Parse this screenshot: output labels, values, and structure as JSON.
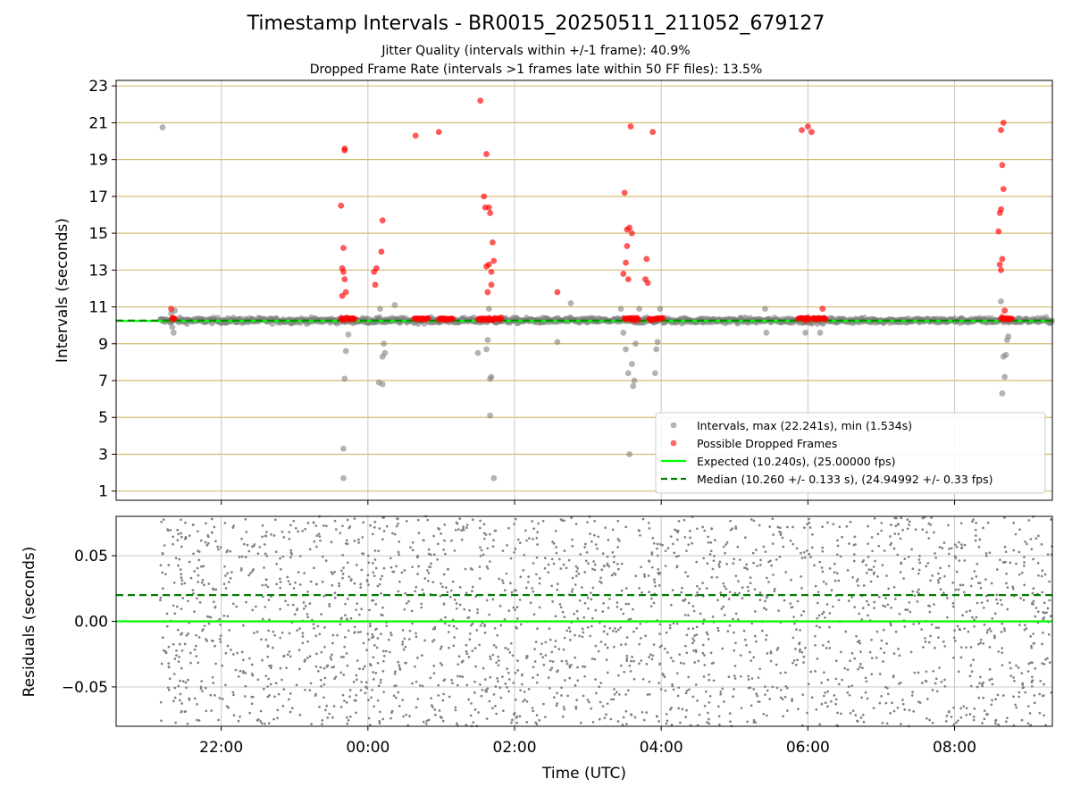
{
  "title": "Timestamp Intervals - BR0015_20250511_211052_679127",
  "subtitle_1": "Jitter Quality (intervals within +/-1 frame): 40.9%",
  "subtitle_2": "Dropped Frame Rate (intervals >1 frames late within 50 FF files): 13.5%",
  "chart_data": [
    {
      "type": "scatter",
      "panel": "intervals",
      "ylabel": "Intervals (seconds)",
      "xlabel": "",
      "ylim": [
        0.5,
        23.3
      ],
      "yticks": [
        1,
        3,
        5,
        7,
        9,
        11,
        13,
        15,
        17,
        19,
        21,
        23
      ],
      "grid": true,
      "legend_position": "lower right",
      "legend": [
        {
          "label": "Intervals, max (22.241s), min (1.534s)",
          "color": "#808080",
          "marker": "circle"
        },
        {
          "label": "Possible Dropped Frames",
          "color": "#ff0000",
          "marker": "circle"
        },
        {
          "label": "Expected (10.240s), (25.00000 fps)",
          "color": "#00ff00",
          "marker": "solid-line"
        },
        {
          "label": "Median (10.260 +/- 0.133 s), (24.94992 +/- 0.33 fps)",
          "color": "#008000",
          "marker": "dashed-line"
        }
      ],
      "expected_value": 10.24,
      "median_value": 10.26,
      "band": {
        "center": 10.26,
        "halfwidth": 0.2
      },
      "series": [
        {
          "name": "Intervals",
          "color": "#808080",
          "points": [
            [
              "21:12",
              20.75
            ],
            [
              "21:21",
              9.6
            ],
            [
              "21:20",
              9.9
            ],
            [
              "21:19",
              10.65
            ],
            [
              "21:22",
              10.8
            ],
            [
              "23:40",
              3.3
            ],
            [
              "23:40",
              1.7
            ],
            [
              "23:41",
              7.1
            ],
            [
              "23:42",
              8.6
            ],
            [
              "23:44",
              9.5
            ],
            [
              "00:09",
              6.9
            ],
            [
              "00:12",
              6.8
            ],
            [
              "00:12",
              8.3
            ],
            [
              "00:14",
              8.5
            ],
            [
              "00:13",
              9.0
            ],
            [
              "00:10",
              10.9
            ],
            [
              "00:22",
              11.1
            ],
            [
              "01:30",
              8.5
            ],
            [
              "01:37",
              8.7
            ],
            [
              "01:38",
              9.2
            ],
            [
              "01:40",
              7.1
            ],
            [
              "01:41",
              7.2
            ],
            [
              "01:40",
              5.1
            ],
            [
              "01:43",
              1.7
            ],
            [
              "01:39",
              10.9
            ],
            [
              "02:35",
              9.1
            ],
            [
              "02:46",
              11.2
            ],
            [
              "03:27",
              10.9
            ],
            [
              "03:29",
              9.6
            ],
            [
              "03:31",
              8.7
            ],
            [
              "03:33",
              7.4
            ],
            [
              "03:34",
              3.0
            ],
            [
              "03:36",
              7.9
            ],
            [
              "03:37",
              6.7
            ],
            [
              "03:38",
              7.0
            ],
            [
              "03:39",
              9.0
            ],
            [
              "03:42",
              10.9
            ],
            [
              "03:55",
              7.4
            ],
            [
              "03:56",
              8.7
            ],
            [
              "03:57",
              9.1
            ],
            [
              "03:59",
              10.9
            ],
            [
              "05:25",
              10.9
            ],
            [
              "05:26",
              9.6
            ],
            [
              "05:58",
              9.6
            ],
            [
              "06:10",
              9.6
            ],
            [
              "08:38",
              11.3
            ],
            [
              "08:39",
              6.3
            ],
            [
              "08:40",
              8.3
            ],
            [
              "08:41",
              7.2
            ],
            [
              "08:42",
              8.4
            ],
            [
              "08:43",
              9.2
            ],
            [
              "08:44",
              9.4
            ]
          ]
        },
        {
          "name": "Possible Dropped Frames",
          "color": "#ff0000",
          "points": [
            [
              "21:19",
              10.9
            ],
            [
              "21:20",
              10.4
            ],
            [
              "23:38",
              16.5
            ],
            [
              "23:39",
              13.1
            ],
            [
              "23:40",
              12.9
            ],
            [
              "23:41",
              12.5
            ],
            [
              "23:39",
              11.6
            ],
            [
              "23:42",
              11.8
            ],
            [
              "23:40",
              14.2
            ],
            [
              "23:41",
              19.5
            ],
            [
              "23:41",
              19.6
            ],
            [
              "00:05",
              12.9
            ],
            [
              "00:07",
              13.1
            ],
            [
              "00:06",
              12.2
            ],
            [
              "00:12",
              15.7
            ],
            [
              "00:11",
              14.0
            ],
            [
              "00:39",
              20.3
            ],
            [
              "00:58",
              20.5
            ],
            [
              "01:32",
              22.2
            ],
            [
              "01:35",
              17.0
            ],
            [
              "01:37",
              19.3
            ],
            [
              "01:36",
              16.4
            ],
            [
              "01:39",
              16.4
            ],
            [
              "01:40",
              16.1
            ],
            [
              "01:42",
              14.5
            ],
            [
              "01:37",
              13.2
            ],
            [
              "01:39",
              13.3
            ],
            [
              "01:41",
              12.9
            ],
            [
              "01:38",
              11.8
            ],
            [
              "01:41",
              12.2
            ],
            [
              "01:43",
              13.5
            ],
            [
              "02:35",
              11.8
            ],
            [
              "03:30",
              17.2
            ],
            [
              "03:32",
              15.2
            ],
            [
              "03:34",
              15.3
            ],
            [
              "03:36",
              15.0
            ],
            [
              "03:32",
              14.3
            ],
            [
              "03:31",
              13.4
            ],
            [
              "03:29",
              12.8
            ],
            [
              "03:33",
              12.5
            ],
            [
              "03:35",
              20.8
            ],
            [
              "03:48",
              13.6
            ],
            [
              "03:47",
              12.5
            ],
            [
              "03:49",
              12.3
            ],
            [
              "03:53",
              20.5
            ],
            [
              "05:55",
              20.6
            ],
            [
              "06:00",
              20.8
            ],
            [
              "06:03",
              20.5
            ],
            [
              "06:12",
              10.9
            ],
            [
              "08:38",
              20.6
            ],
            [
              "08:40",
              21.0
            ],
            [
              "08:39",
              18.7
            ],
            [
              "08:40",
              17.4
            ],
            [
              "08:38",
              16.3
            ],
            [
              "08:37",
              16.1
            ],
            [
              "08:36",
              15.1
            ],
            [
              "08:39",
              13.6
            ],
            [
              "08:37",
              13.3
            ],
            [
              "08:38",
              13.0
            ],
            [
              "08:41",
              10.8
            ]
          ]
        }
      ],
      "dropped_clusters": [
        [
          "21:20",
          "21:22"
        ],
        [
          "23:38",
          "23:50"
        ],
        [
          "00:38",
          "00:50"
        ],
        [
          "00:58",
          "01:10"
        ],
        [
          "01:30",
          "01:50"
        ],
        [
          "03:30",
          "03:42"
        ],
        [
          "03:50",
          "04:02"
        ],
        [
          "05:52",
          "06:02"
        ],
        [
          "06:04",
          "06:15"
        ],
        [
          "08:38",
          "08:47"
        ]
      ]
    },
    {
      "type": "scatter",
      "panel": "residuals",
      "ylabel": "Residuals (seconds)",
      "xlabel": "Time (UTC)",
      "ylim": [
        -0.08,
        0.08
      ],
      "yticks": [
        -0.05,
        0.0,
        0.05
      ],
      "ytick_labels": [
        "−0.05",
        "0.00",
        "0.05"
      ],
      "xticks": [
        "22:00",
        "00:00",
        "02:00",
        "04:00",
        "06:00",
        "08:00"
      ],
      "xlim": [
        "20:34",
        "09:20"
      ],
      "grid": true,
      "expected_value": 0.0,
      "median_value": 0.02,
      "series": [
        {
          "name": "Residuals",
          "color": "#808080",
          "x_range": [
            "21:10",
            "09:20"
          ],
          "y_range": [
            -0.08,
            0.08
          ],
          "distribution": "uniform"
        }
      ]
    }
  ]
}
